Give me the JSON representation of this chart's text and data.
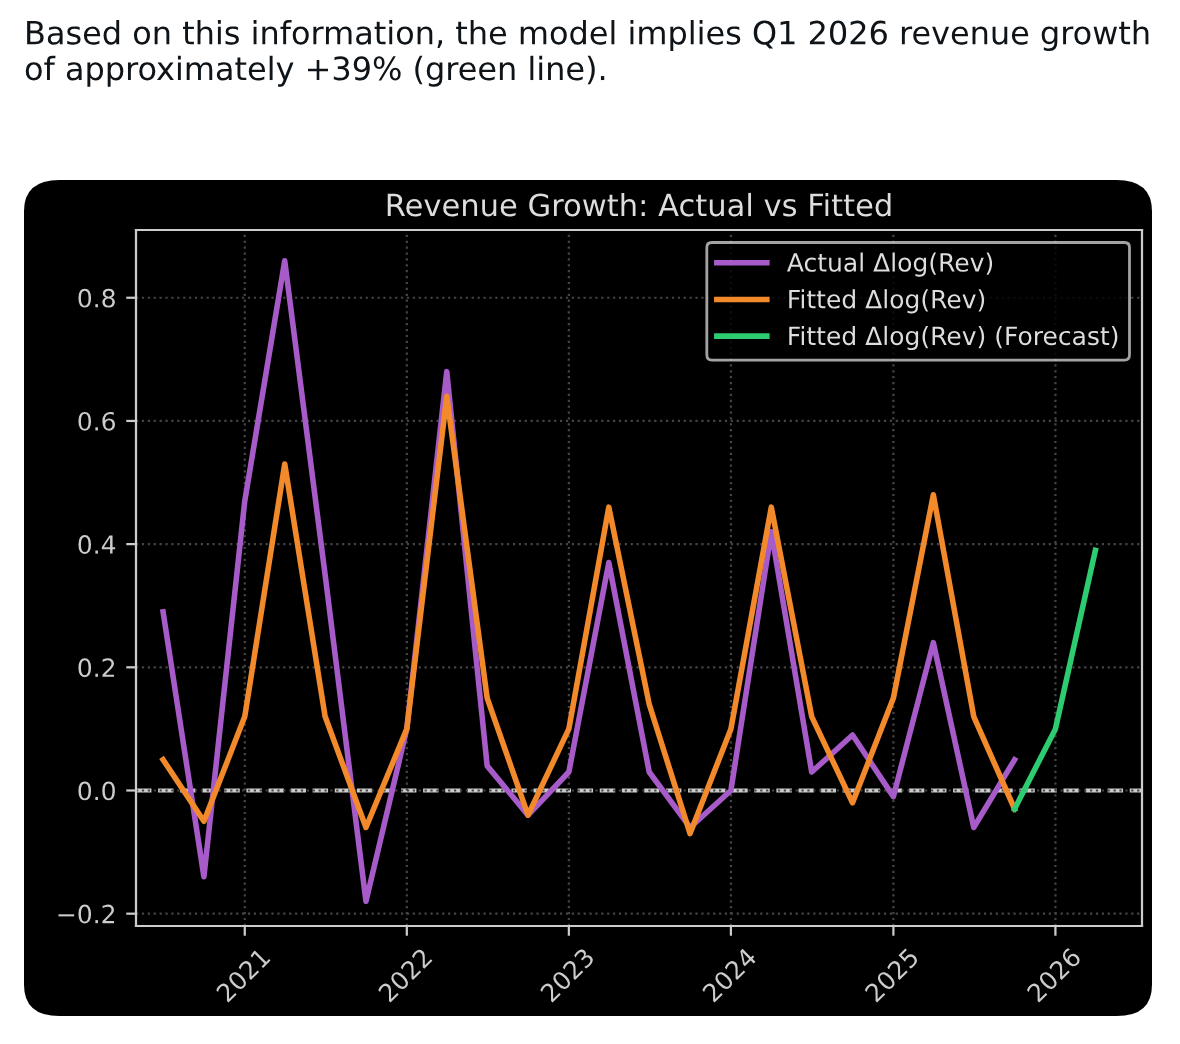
{
  "chart_data": {
    "type": "line",
    "title": "Revenue Growth: Actual vs Fitted",
    "annotations": [
      "Based on this information, the model implies Q1 2026 revenue growth of approximately +39% (green line)."
    ],
    "series": [
      {
        "name": "Actual Δlog(Rev)",
        "color": "#a65bc9",
        "x": [
          "2020-07-01",
          "2020-10-01",
          "2021-01-01",
          "2021-04-01",
          "2021-07-01",
          "2021-10-01",
          "2022-01-01",
          "2022-04-01",
          "2022-07-01",
          "2022-10-01",
          "2023-01-01",
          "2023-04-01",
          "2023-07-01",
          "2023-10-01",
          "2024-01-01",
          "2024-04-01",
          "2024-07-01",
          "2024-10-01",
          "2025-01-01",
          "2025-04-01",
          "2025-07-01",
          "2025-10-01"
        ],
        "values": [
          0.29,
          -0.14,
          0.47,
          0.86,
          0.35,
          -0.18,
          0.1,
          0.68,
          0.04,
          -0.04,
          0.03,
          0.37,
          0.03,
          -0.06,
          0.0,
          0.42,
          0.03,
          0.09,
          -0.01,
          0.24,
          -0.06,
          0.05
        ]
      },
      {
        "name": "Fitted Δlog(Rev)",
        "color": "#f28a2c",
        "x": [
          "2020-07-01",
          "2020-10-01",
          "2021-01-01",
          "2021-04-01",
          "2021-07-01",
          "2021-10-01",
          "2022-01-01",
          "2022-04-01",
          "2022-07-01",
          "2022-10-01",
          "2023-01-01",
          "2023-04-01",
          "2023-07-01",
          "2023-10-01",
          "2024-01-01",
          "2024-04-01",
          "2024-07-01",
          "2024-10-01",
          "2025-01-01",
          "2025-04-01",
          "2025-07-01",
          "2025-10-01"
        ],
        "values": [
          0.05,
          -0.05,
          0.12,
          0.53,
          0.12,
          -0.06,
          0.1,
          0.64,
          0.15,
          -0.04,
          0.1,
          0.46,
          0.14,
          -0.07,
          0.1,
          0.46,
          0.12,
          -0.02,
          0.15,
          0.48,
          0.12,
          -0.03
        ]
      },
      {
        "name": "Fitted Δlog(Rev) (Forecast)",
        "color": "#2ecc71",
        "x": [
          "2025-10-01",
          "2026-01-01",
          "2026-04-01"
        ],
        "values": [
          -0.03,
          0.1,
          0.39
        ]
      }
    ],
    "xlim": [
      "2020-05-01",
      "2026-07-15"
    ],
    "xticks": [
      {
        "value": "2021-01-01",
        "label": "2021"
      },
      {
        "value": "2022-01-01",
        "label": "2022"
      },
      {
        "value": "2023-01-01",
        "label": "2023"
      },
      {
        "value": "2024-01-01",
        "label": "2024"
      },
      {
        "value": "2025-01-01",
        "label": "2025"
      },
      {
        "value": "2026-01-01",
        "label": "2026"
      }
    ],
    "ylim": [
      -0.22,
      0.91
    ],
    "yticks": [
      {
        "value": -0.2,
        "label": "−0.2"
      },
      {
        "value": 0.0,
        "label": "0.0"
      },
      {
        "value": 0.2,
        "label": "0.2"
      },
      {
        "value": 0.4,
        "label": "0.4"
      },
      {
        "value": 0.6,
        "label": "0.6"
      },
      {
        "value": 0.8,
        "label": "0.8"
      }
    ],
    "ref_lines": [
      {
        "axis": "y",
        "value": 0,
        "color": "#cccccc",
        "line_style": "dashed"
      }
    ],
    "grid": true,
    "legend": "top right",
    "line_style": "solid",
    "marker": "none"
  }
}
